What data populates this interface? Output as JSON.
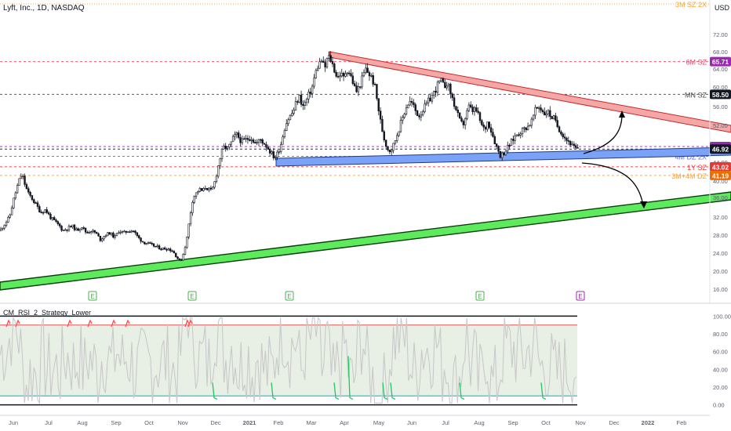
{
  "header": {
    "symbol_title": "Lyft, Inc., 1D, NASDAQ",
    "currency": "USD"
  },
  "indicator": {
    "label": "CM_RSI_2_Strategy_Lower"
  },
  "colors": {
    "background": "#ffffff",
    "up_candle": "#131722",
    "down_candle": "#131722",
    "resistance_fill": "#f4a7a6",
    "resistance_stroke": "#c62828",
    "support_fill": "#7aa2f7",
    "support_stroke": "#1e3a8a",
    "long_support_fill": "#5dea5d",
    "long_support_stroke": "#0b3d0b",
    "rsi_line": "#c9c9c9",
    "rsi_panel_fill": "#e8f0e6",
    "rsi_upper": "#e57373",
    "rsi_lower": "#26c6da",
    "signal_sell": "#ff4b4b",
    "signal_buy": "#22c55e",
    "earnings_green": "#4caf50",
    "earnings_purple": "#9c27b0"
  },
  "chart_data": [
    {
      "type": "candlestick",
      "title": "Lyft, Inc., 1D, NASDAQ",
      "x_labels": [
        "Jun",
        "Jul",
        "Aug",
        "Sep",
        "Oct",
        "Nov",
        "Dec",
        "2021",
        "Feb",
        "Mar",
        "Apr",
        "May",
        "Jun",
        "Jul",
        "Aug",
        "Sep",
        "Oct",
        "Nov",
        "Dec",
        "2022",
        "Feb"
      ],
      "y_ticks": [
        72.0,
        68.0,
        64.0,
        60.0,
        56.0,
        52.0,
        48.0,
        44.0,
        40.0,
        36.0,
        32.0,
        28.0,
        24.0,
        20.0,
        16.0
      ],
      "ylim": [
        14,
        80
      ],
      "price_path": [
        [
          0,
          29.0
        ],
        [
          6,
          30.5
        ],
        [
          12,
          32.0
        ],
        [
          18,
          36.0
        ],
        [
          24,
          40.0
        ],
        [
          28,
          41.5
        ],
        [
          32,
          39.0
        ],
        [
          36,
          37.0
        ],
        [
          40,
          36.0
        ],
        [
          46,
          34.5
        ],
        [
          52,
          33.0
        ],
        [
          58,
          33.5
        ],
        [
          64,
          32.0
        ],
        [
          70,
          31.0
        ],
        [
          76,
          30.0
        ],
        [
          80,
          29.0
        ],
        [
          86,
          29.5
        ],
        [
          92,
          30.0
        ],
        [
          98,
          29.0
        ],
        [
          104,
          30.0
        ],
        [
          110,
          28.5
        ],
        [
          116,
          29.0
        ],
        [
          122,
          28.5
        ],
        [
          128,
          27.0
        ],
        [
          134,
          28.0
        ],
        [
          140,
          28.5
        ],
        [
          146,
          27.5
        ],
        [
          152,
          29.0
        ],
        [
          158,
          28.5
        ],
        [
          164,
          29.0
        ],
        [
          170,
          29.0
        ],
        [
          176,
          27.5
        ],
        [
          182,
          26.5
        ],
        [
          190,
          26.0
        ],
        [
          198,
          25.5
        ],
        [
          206,
          25.0
        ],
        [
          214,
          25.0
        ],
        [
          220,
          24.5
        ],
        [
          226,
          23.0
        ],
        [
          230,
          22.0
        ],
        [
          234,
          24.0
        ],
        [
          238,
          27.0
        ],
        [
          242,
          32.0
        ],
        [
          246,
          36.0
        ],
        [
          250,
          37.0
        ],
        [
          254,
          38.0
        ],
        [
          258,
          37.5
        ],
        [
          262,
          38.5
        ],
        [
          266,
          38.0
        ],
        [
          270,
          37.5
        ],
        [
          274,
          40.0
        ],
        [
          278,
          43.0
        ],
        [
          282,
          46.0
        ],
        [
          286,
          47.5
        ],
        [
          290,
          47.0
        ],
        [
          294,
          48.0
        ],
        [
          298,
          49.5
        ],
        [
          302,
          50.0
        ],
        [
          308,
          48.5
        ],
        [
          314,
          49.0
        ],
        [
          320,
          49.5
        ],
        [
          326,
          48.0
        ],
        [
          332,
          49.0
        ],
        [
          338,
          48.0
        ],
        [
          342,
          47.0
        ],
        [
          346,
          46.0
        ],
        [
          350,
          45.0
        ],
        [
          354,
          46.0
        ],
        [
          358,
          48.0
        ],
        [
          362,
          51.0
        ],
        [
          366,
          53.0
        ],
        [
          370,
          54.0
        ],
        [
          374,
          55.0
        ],
        [
          378,
          57.0
        ],
        [
          382,
          58.0
        ],
        [
          386,
          56.0
        ],
        [
          390,
          57.0
        ],
        [
          394,
          58.5
        ],
        [
          398,
          60.0
        ],
        [
          402,
          63.0
        ],
        [
          406,
          65.0
        ],
        [
          410,
          66.0
        ],
        [
          414,
          64.0
        ],
        [
          418,
          67.0
        ],
        [
          422,
          66.0
        ],
        [
          426,
          64.0
        ],
        [
          430,
          62.0
        ],
        [
          434,
          63.0
        ],
        [
          438,
          62.0
        ],
        [
          442,
          64.0
        ],
        [
          446,
          63.0
        ],
        [
          450,
          61.0
        ],
        [
          454,
          59.0
        ],
        [
          458,
          60.0
        ],
        [
          462,
          62.0
        ],
        [
          466,
          64.0
        ],
        [
          470,
          63.0
        ],
        [
          474,
          62.0
        ],
        [
          478,
          60.0
        ],
        [
          482,
          56.0
        ],
        [
          486,
          52.0
        ],
        [
          490,
          49.0
        ],
        [
          494,
          47.0
        ],
        [
          498,
          46.5
        ],
        [
          502,
          48.0
        ],
        [
          506,
          50.0
        ],
        [
          510,
          52.0
        ],
        [
          514,
          54.0
        ],
        [
          518,
          56.0
        ],
        [
          522,
          57.0
        ],
        [
          526,
          56.5
        ],
        [
          530,
          55.0
        ],
        [
          534,
          54.0
        ],
        [
          538,
          55.0
        ],
        [
          542,
          56.0
        ],
        [
          546,
          57.0
        ],
        [
          550,
          58.0
        ],
        [
          554,
          59.0
        ],
        [
          558,
          60.5
        ],
        [
          562,
          61.5
        ],
        [
          566,
          60.0
        ],
        [
          570,
          61.0
        ],
        [
          574,
          59.0
        ],
        [
          578,
          57.0
        ],
        [
          582,
          55.0
        ],
        [
          586,
          53.0
        ],
        [
          590,
          52.0
        ],
        [
          594,
          54.0
        ],
        [
          598,
          56.0
        ],
        [
          602,
          55.0
        ],
        [
          606,
          55.5
        ],
        [
          610,
          54.0
        ],
        [
          614,
          52.0
        ],
        [
          618,
          51.0
        ],
        [
          622,
          53.0
        ],
        [
          626,
          51.0
        ],
        [
          630,
          49.0
        ],
        [
          634,
          47.0
        ],
        [
          638,
          45.5
        ],
        [
          642,
          46.0
        ],
        [
          646,
          47.0
        ],
        [
          650,
          48.0
        ],
        [
          654,
          49.0
        ],
        [
          658,
          50.0
        ],
        [
          662,
          50.5
        ],
        [
          666,
          51.0
        ],
        [
          670,
          51.5
        ],
        [
          674,
          52.0
        ],
        [
          678,
          53.0
        ],
        [
          682,
          55.0
        ],
        [
          686,
          56.0
        ],
        [
          690,
          55.5
        ],
        [
          694,
          54.5
        ],
        [
          698,
          55.0
        ],
        [
          702,
          54.0
        ],
        [
          706,
          53.5
        ],
        [
          710,
          52.0
        ],
        [
          714,
          51.0
        ],
        [
          718,
          50.0
        ],
        [
          722,
          49.0
        ],
        [
          726,
          48.5
        ],
        [
          730,
          47.5
        ],
        [
          734,
          47.0
        ],
        [
          737,
          46.9
        ]
      ],
      "horizontal_levels": [
        {
          "label": "3M SZ 2X",
          "value": 79.0,
          "color": "#f7a232",
          "dotted": true,
          "tag": ""
        },
        {
          "label": "6M SZ",
          "value": 65.71,
          "color": "#e04b6a",
          "dotted": false,
          "tag": "65.71",
          "tag_color": "#9c27b0"
        },
        {
          "label": "MN SZ",
          "value": 58.5,
          "color": "#4a4a4a",
          "dotted": false,
          "tag": "58.50",
          "tag_color": "#131722"
        },
        {
          "label": "",
          "value": 47.47,
          "color": "#9c27b0",
          "dotted": false,
          "tag": "47.47",
          "tag_color": "#9c27b0"
        },
        {
          "label": "",
          "value": 46.92,
          "color": "#131722",
          "dotted": false,
          "tag": "46.92",
          "tag_color": "#131722"
        },
        {
          "label": "4M DZ 2X",
          "value": 45.3,
          "color": "#5b6bff",
          "dotted": false,
          "tag": "",
          "tag_color": ""
        },
        {
          "label": "1Y SZ",
          "value": 43.02,
          "color": "#e53935",
          "dotted": false,
          "tag": "43.02",
          "tag_color": "#e53935"
        },
        {
          "label": "3M+4M DZ",
          "value": 41.19,
          "color": "#f7a232",
          "dotted": false,
          "tag": "41.19",
          "tag_color": "#ef6c00"
        }
      ],
      "earnings_markers": [
        {
          "label": "E",
          "x": 118,
          "color": "#4caf50"
        },
        {
          "label": "E",
          "x": 245,
          "color": "#4caf50"
        },
        {
          "label": "E",
          "x": 369,
          "color": "#4caf50"
        },
        {
          "label": "E",
          "x": 612,
          "color": "#4caf50"
        },
        {
          "label": "E",
          "x": 740,
          "color": "#9c27b0"
        }
      ]
    },
    {
      "type": "line",
      "title": "CM_RSI_2_Strategy_Lower",
      "y_ticks": [
        100.0,
        80.0,
        60.0,
        40.0,
        20.0,
        0.0
      ],
      "ylim": [
        -3,
        103
      ],
      "upper_threshold": 90,
      "lower_threshold": 10
    }
  ]
}
